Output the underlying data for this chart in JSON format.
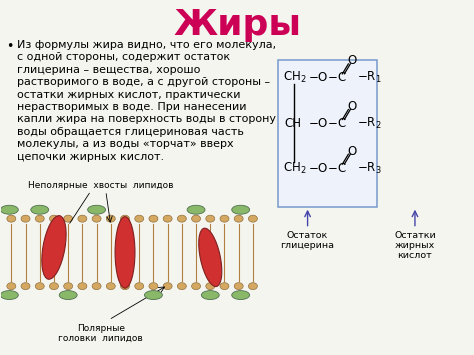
{
  "title": "Жиры",
  "title_color": "#cc0055",
  "title_fontsize": 26,
  "body_text": "Из формулы жира видно, что его молекула,\nс одной стороны, содержит остаток\nглицерина – вещества, хорошо\nрастворимого в воде, а с другой стороны –\nостатки жирных кислот, практически\nнерастворимых в воде. При нанесении\nкапли жира на поверхность воды в сторону\nводы обращается глицериновая часть\nмолекулы, а из воды «торчат» вверх\nцепочки жирных кислот.",
  "body_fontsize": 8.0,
  "label_nonpolar": "Неполярные  хвосты  липидов",
  "label_polar": "Полярные\nголовки  липидов",
  "label_glycerin": "Остаток\nглицерина",
  "label_fatty": "Остатки\nжирных\nкислот",
  "background_color": "#f5f5f0",
  "text_color": "#000000",
  "formula_box_color": "#7799cc",
  "lipid_head_color": "#d4a860",
  "lipid_protein_color": "#d03030",
  "lipid_green_color": "#88b868"
}
